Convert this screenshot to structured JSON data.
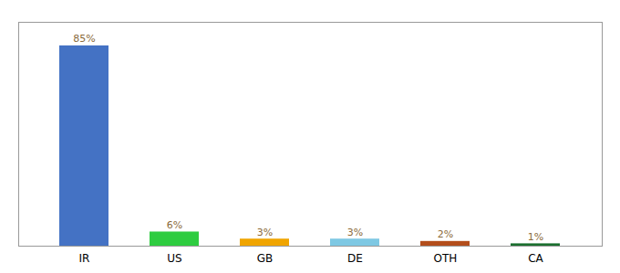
{
  "chart_data": {
    "type": "bar",
    "categories": [
      "IR",
      "US",
      "GB",
      "DE",
      "OTH",
      "CA"
    ],
    "values": [
      85,
      6,
      3,
      3,
      2,
      1
    ],
    "value_labels": [
      "85%",
      "6%",
      "3%",
      "3%",
      "2%",
      "1%"
    ],
    "colors": [
      "#4472c4",
      "#2ecc40",
      "#f0a500",
      "#7ec8e3",
      "#b34d1b",
      "#1a6e2e"
    ],
    "ylim": [
      0,
      95
    ],
    "data_labels": true,
    "tick_labels": "x"
  }
}
